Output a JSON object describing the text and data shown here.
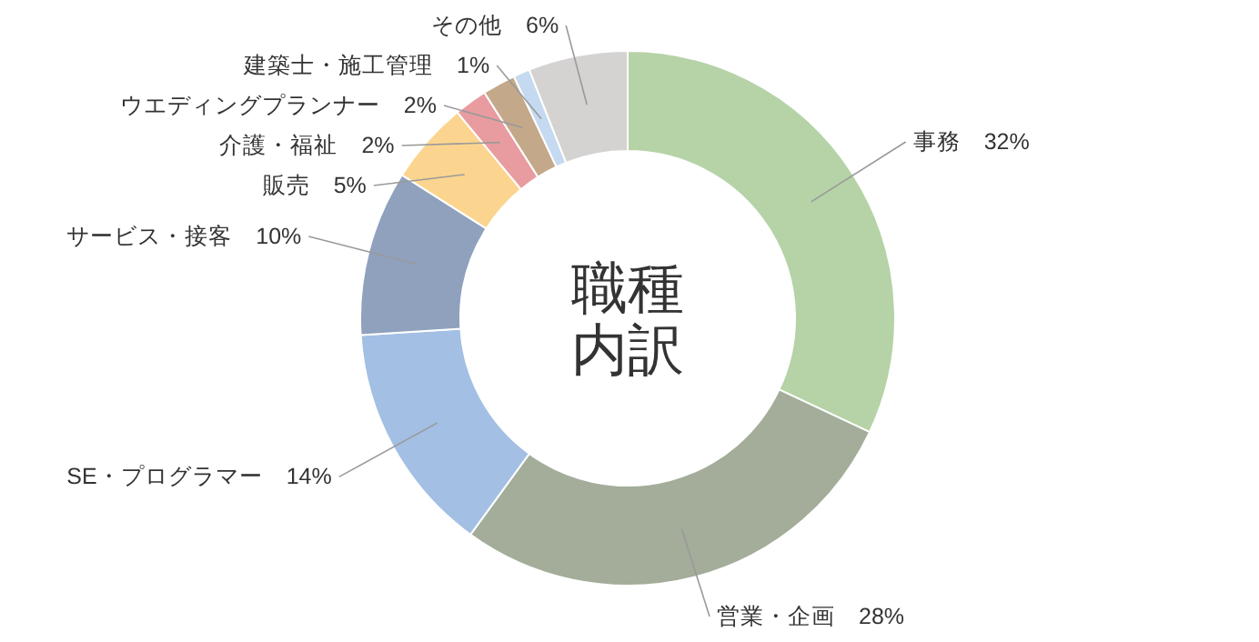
{
  "chart_data": {
    "type": "donut",
    "title": "職種内訳",
    "categories": [
      "事務",
      "営業・企画",
      "SE・プログラマー",
      "サービス・接客",
      "販売",
      "介護・福祉",
      "ウエディングプランナー",
      "建築士・施工管理",
      "その他"
    ],
    "values": [
      32,
      28,
      14,
      10,
      5,
      2,
      2,
      1,
      6
    ],
    "value_labels": [
      "32%",
      "28%",
      "14%",
      "10%",
      "5%",
      "2%",
      "2%",
      "1%",
      "6%"
    ],
    "colors": [
      "#b5d3a6",
      "#a3ad9a",
      "#a3bfe3",
      "#8fa1bd",
      "#fbd58f",
      "#e89ca0",
      "#c4a88a",
      "#c5daf0",
      "#d5d2d2"
    ]
  }
}
